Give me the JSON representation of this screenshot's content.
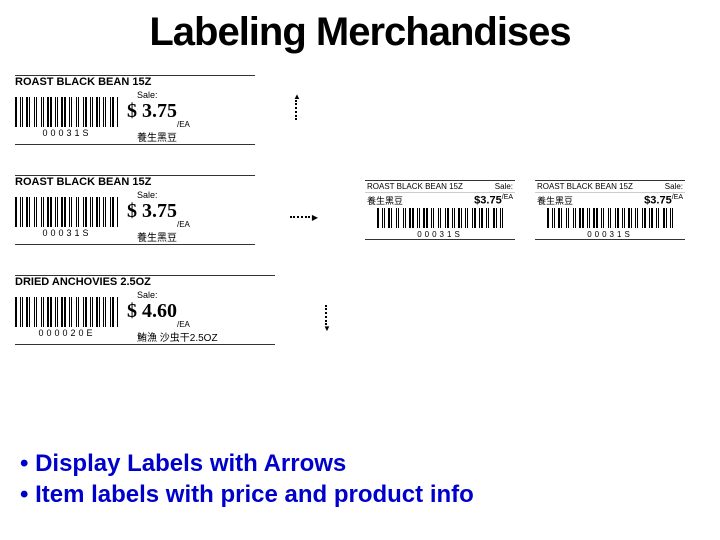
{
  "title": "Labeling Merchandises",
  "labels": {
    "large": [
      {
        "name": "ROAST BLACK BEAN 15Z",
        "sale": "Sale:",
        "price": "$ 3.75",
        "unit": "/EA",
        "code": "00031S",
        "cjk": "養生黑豆"
      },
      {
        "name": "ROAST BLACK BEAN 15Z",
        "sale": "Sale:",
        "price": "$ 3.75",
        "unit": "/EA",
        "code": "00031S",
        "cjk": "養生黑豆"
      },
      {
        "name": "DRIED ANCHOVIES 2.5OZ",
        "sale": "Sale:",
        "price": "$ 4.60",
        "unit": "/EA",
        "code": "000020E",
        "cjk": "鮪漁 沙虫干2.5OZ"
      }
    ],
    "small": [
      {
        "name": "ROAST BLACK BEAN 15Z",
        "sale": "Sale:",
        "cjk": "養生黑豆",
        "price": "$3.75",
        "unit": "/EA",
        "code": "00031S"
      },
      {
        "name": "ROAST BLACK BEAN 15Z",
        "sale": "Sale:",
        "cjk": "養生黑豆",
        "price": "$3.75",
        "unit": "/EA",
        "code": "00031S"
      }
    ]
  },
  "bullets": [
    "Display Labels with Arrows",
    "Item labels with price and product info"
  ],
  "style": {
    "title_color": "#000000",
    "bullet_color": "#0000cc",
    "bg": "#ffffff",
    "border": "#333333"
  }
}
